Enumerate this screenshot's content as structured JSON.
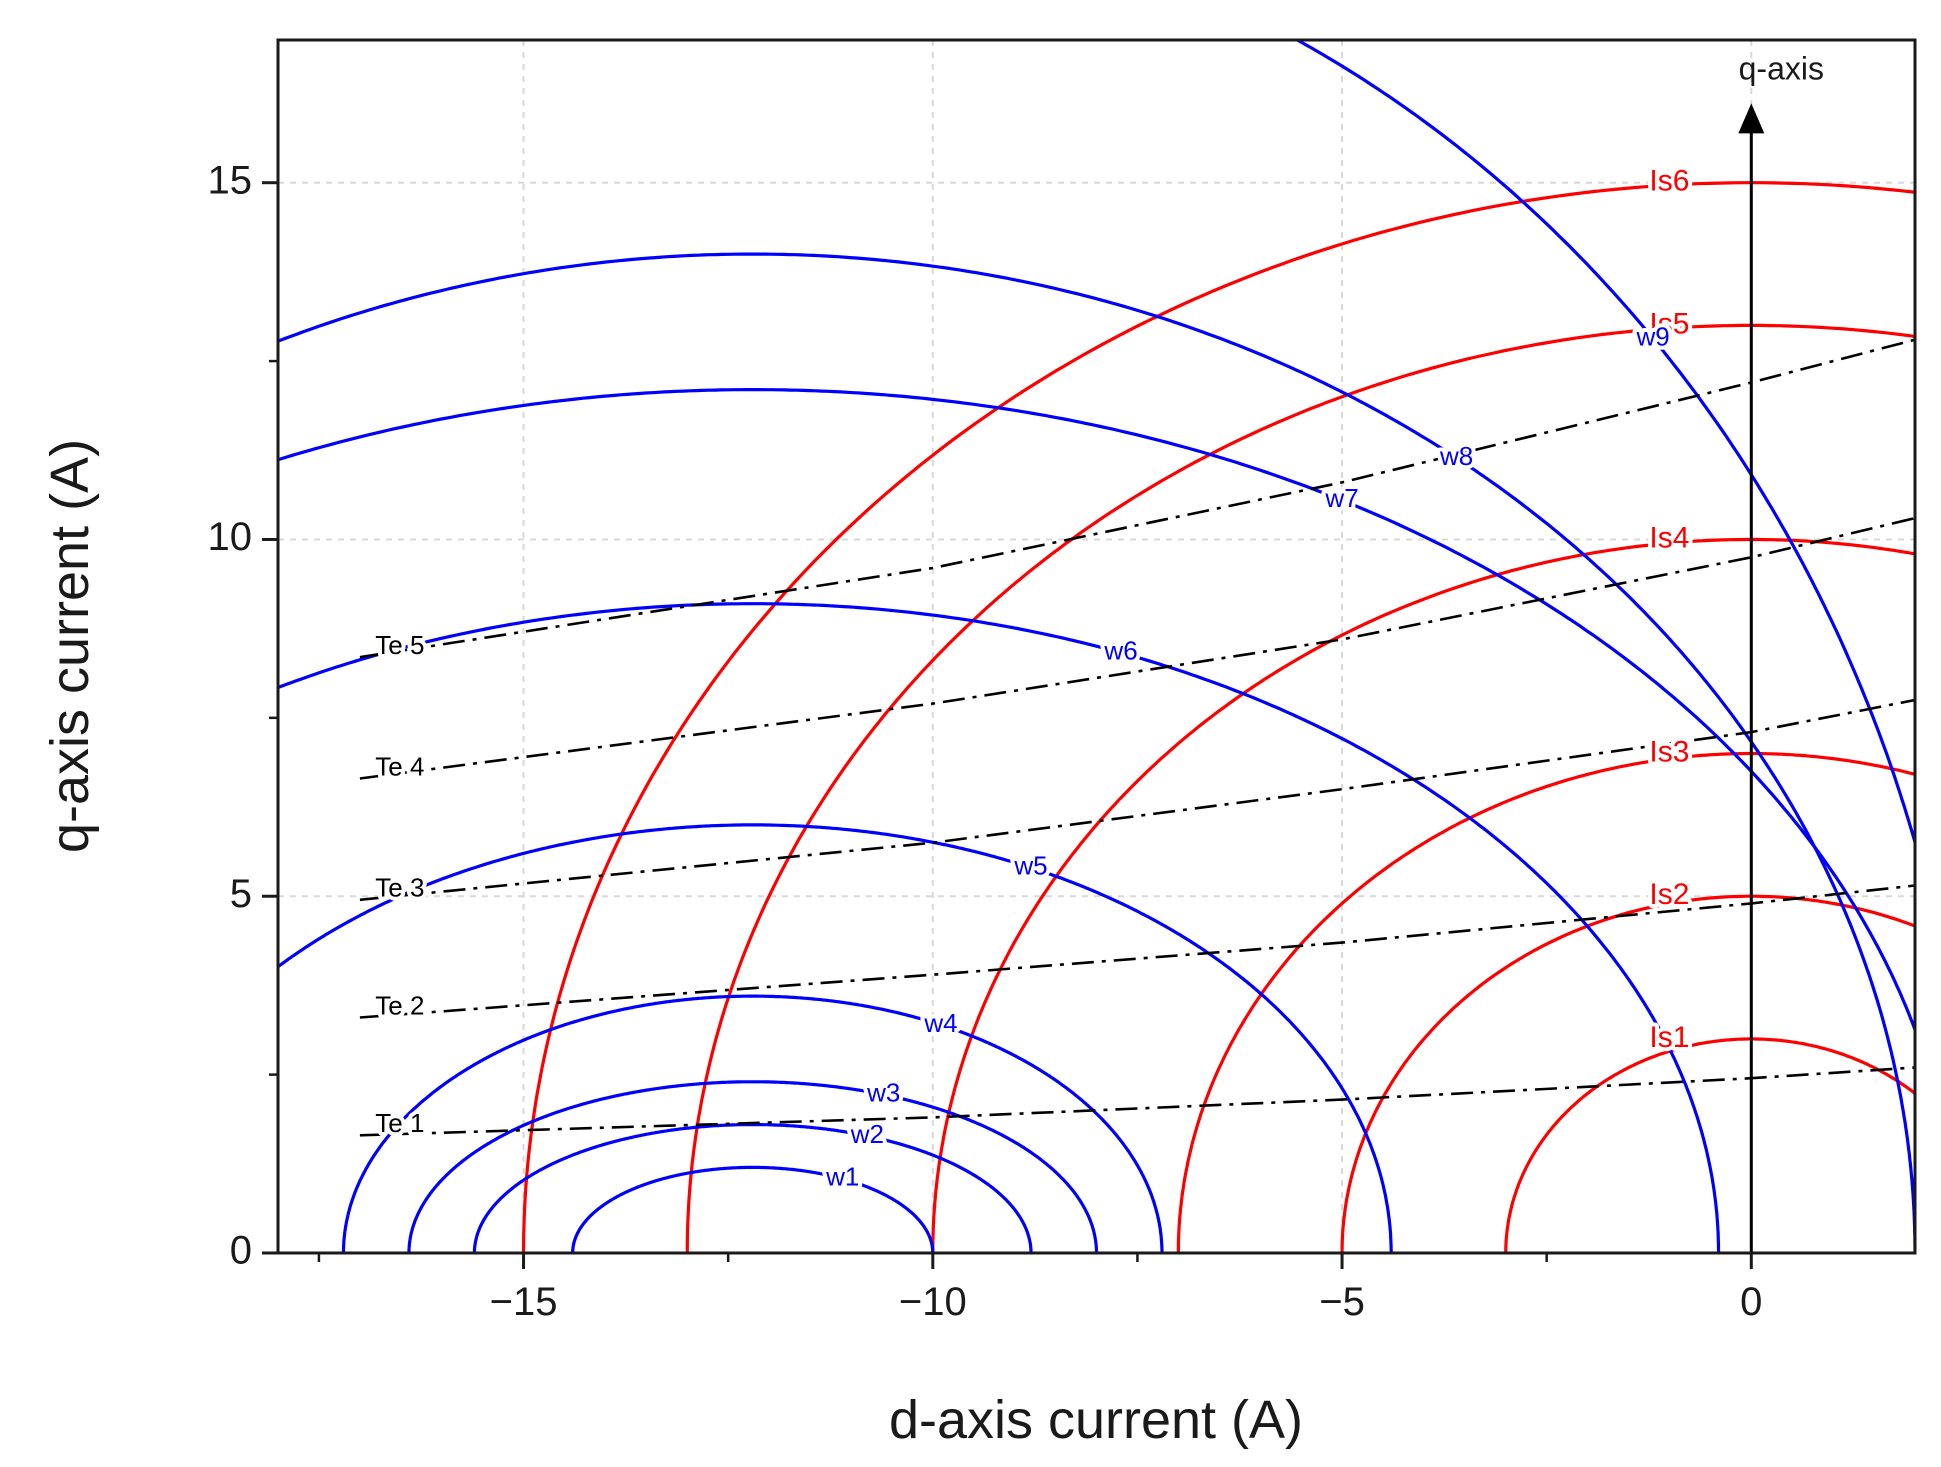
{
  "chart_data": {
    "type": "line",
    "xlabel": "d-axis current (A)",
    "ylabel": "q-axis current (A)",
    "xlim": [
      -18,
      2
    ],
    "ylim": [
      0,
      17
    ],
    "xticks": [
      -15,
      -10,
      -5,
      0
    ],
    "yticks": [
      0,
      5,
      10,
      15
    ],
    "grid": "dashed",
    "axis_arrow": {
      "label": "q-axis",
      "x": 0,
      "y_from": 0,
      "y_to": 16
    },
    "colors": {
      "current_circles": "#ff0000",
      "voltage_ellipses": "#0000ff",
      "torque_curves": "#000000",
      "grid": "#d8d8d8"
    },
    "current_circles": {
      "center": [
        0,
        0
      ],
      "series": [
        {
          "name": "Is1",
          "radius": 3
        },
        {
          "name": "Is2",
          "radius": 5
        },
        {
          "name": "Is3",
          "radius": 7
        },
        {
          "name": "Is4",
          "radius": 10
        },
        {
          "name": "Is5",
          "radius": 13
        },
        {
          "name": "Is6",
          "radius": 15
        }
      ]
    },
    "voltage_ellipses": {
      "center": [
        -12.2,
        0
      ],
      "series": [
        {
          "name": "w1",
          "semi_d": 2.2,
          "semi_q": 1.2,
          "label_at_d": -11.1
        },
        {
          "name": "w2",
          "semi_d": 3.4,
          "semi_q": 1.8,
          "label_at_d": -10.8
        },
        {
          "name": "w3",
          "semi_d": 4.2,
          "semi_q": 2.4,
          "label_at_d": -10.6
        },
        {
          "name": "w4",
          "semi_d": 5.0,
          "semi_q": 3.6,
          "label_at_d": -9.9
        },
        {
          "name": "w5",
          "semi_d": 7.8,
          "semi_q": 6.0,
          "label_at_d": -8.8
        },
        {
          "name": "w6",
          "semi_d": 11.8,
          "semi_q": 9.1,
          "label_at_d": -7.7
        },
        {
          "name": "w7",
          "semi_d": 14.7,
          "semi_q": 12.1,
          "label_at_d": -5.0
        },
        {
          "name": "w8",
          "semi_d": 14.2,
          "semi_q": 14.0,
          "label_at_d": -3.6
        },
        {
          "name": "w9",
          "semi_d": 14.9,
          "semi_q": 19.0,
          "label_at_d": -1.2
        }
      ]
    },
    "torque_curves": [
      {
        "name": "Te 1",
        "points": [
          [
            -17,
            1.65
          ],
          [
            -10,
            1.9
          ],
          [
            -5,
            2.15
          ],
          [
            0,
            2.45
          ],
          [
            2,
            2.6
          ]
        ]
      },
      {
        "name": "Te 2",
        "points": [
          [
            -17,
            3.3
          ],
          [
            -10,
            3.9
          ],
          [
            -5,
            4.35
          ],
          [
            0,
            4.9
          ],
          [
            2,
            5.15
          ]
        ]
      },
      {
        "name": "Te 3",
        "points": [
          [
            -17,
            4.95
          ],
          [
            -10,
            5.75
          ],
          [
            -5,
            6.5
          ],
          [
            0,
            7.3
          ],
          [
            2,
            7.75
          ]
        ]
      },
      {
        "name": "Te 4",
        "points": [
          [
            -17,
            6.65
          ],
          [
            -10,
            7.7
          ],
          [
            -5,
            8.6
          ],
          [
            0,
            9.75
          ],
          [
            2,
            10.3
          ]
        ]
      },
      {
        "name": "Te 5",
        "points": [
          [
            -17,
            8.35
          ],
          [
            -10,
            9.6
          ],
          [
            -5,
            10.8
          ],
          [
            0,
            12.2
          ],
          [
            2,
            12.8
          ]
        ]
      }
    ]
  }
}
